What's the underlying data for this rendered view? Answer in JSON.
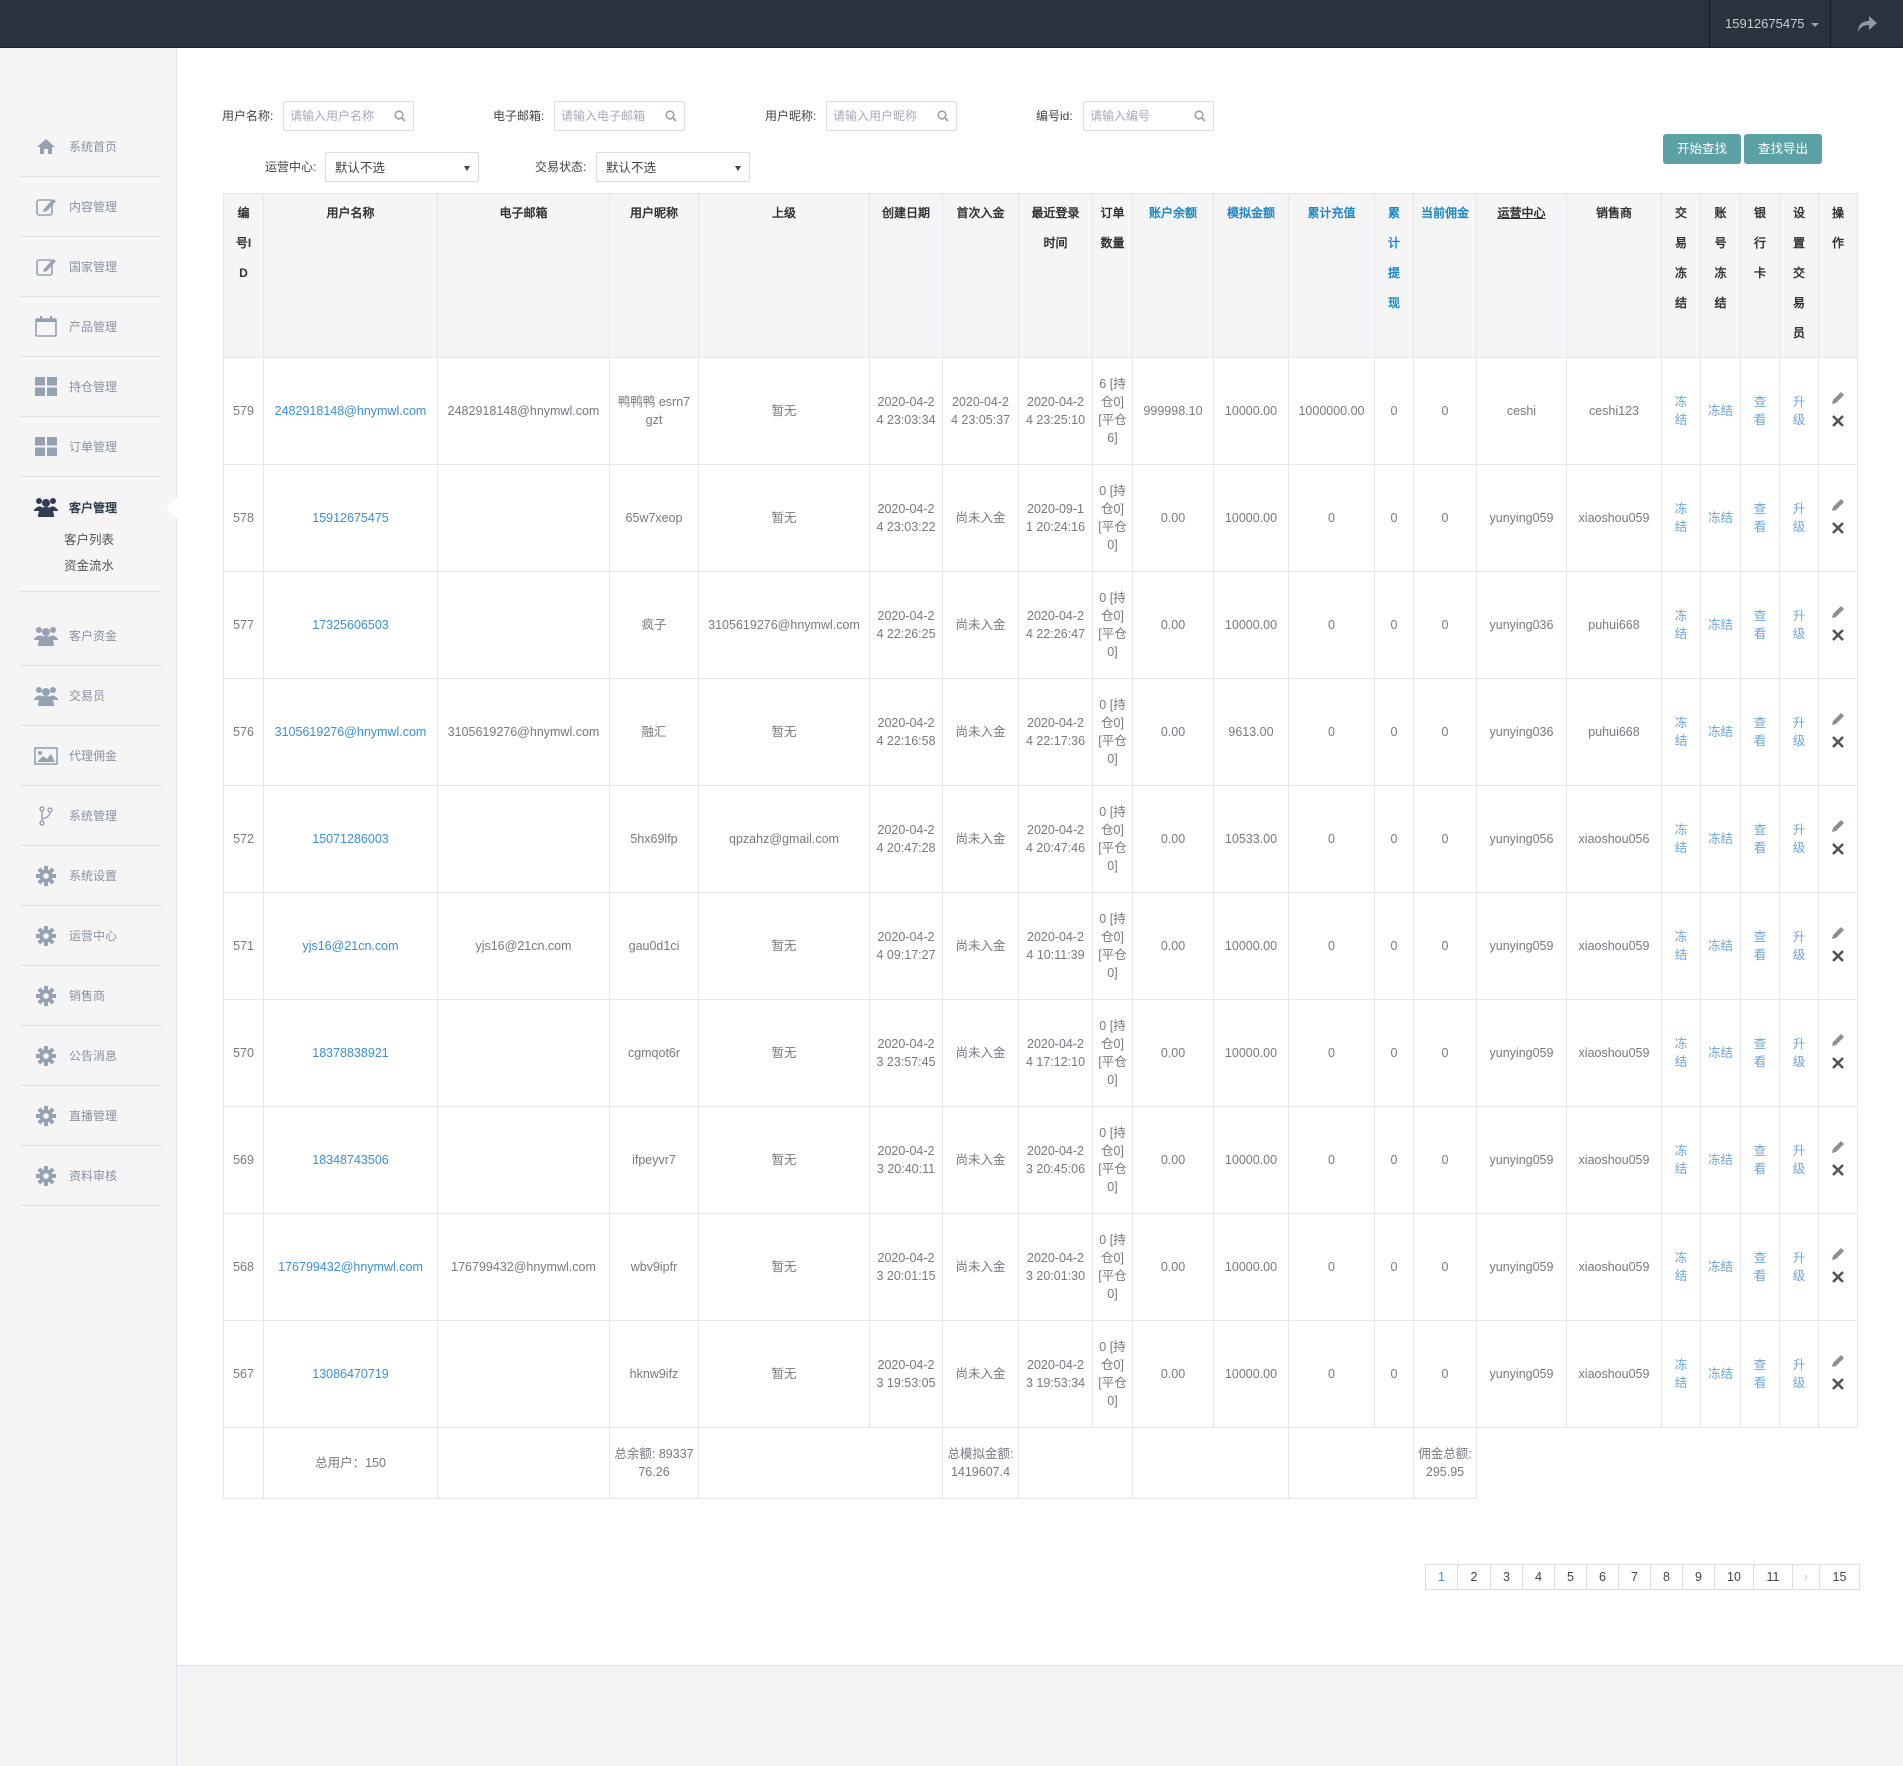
{
  "topbar": {
    "user": "15912675475",
    "share_icon": "share-icon"
  },
  "sidebar": {
    "items": [
      {
        "label": "系统首页",
        "icon": "home-icon"
      },
      {
        "label": "内容管理",
        "icon": "edit-icon"
      },
      {
        "label": "国家管理",
        "icon": "edit-icon"
      },
      {
        "label": "产品管理",
        "icon": "calendar-icon"
      },
      {
        "label": "持仓管理",
        "icon": "grid-icon"
      },
      {
        "label": "订单管理",
        "icon": "grid-icon"
      },
      {
        "label": "客户管理",
        "icon": "users-icon",
        "active": true
      },
      {
        "label": "客户资金",
        "icon": "users-icon"
      },
      {
        "label": "交易员",
        "icon": "users-icon"
      },
      {
        "label": "代理佣金",
        "icon": "image-icon"
      },
      {
        "label": "系统管理",
        "icon": "branch-icon"
      },
      {
        "label": "系统设置",
        "icon": "gear-icon"
      },
      {
        "label": "运营中心",
        "icon": "gear-icon"
      },
      {
        "label": "销售商",
        "icon": "gear-icon"
      },
      {
        "label": "公告消息",
        "icon": "gear-icon"
      },
      {
        "label": "直播管理",
        "icon": "gear-icon"
      },
      {
        "label": "资料审核",
        "icon": "gear-icon"
      }
    ],
    "submenu": [
      "客户列表",
      "资金流水"
    ]
  },
  "filters": {
    "username_label": "用户名称:",
    "username_placeholder": "请输入用户名称",
    "email_label": "电子邮箱:",
    "email_placeholder": "请输入电子邮箱",
    "nickname_label": "用户昵称:",
    "nickname_placeholder": "请输入用户昵称",
    "id_label": "编号id:",
    "id_placeholder": "请输入编号",
    "center_label": "运营中心:",
    "center_value": "默认不选",
    "status_label": "交易状态:",
    "status_value": "默认不选",
    "search_button": "开始查找",
    "export_button": "查找导出"
  },
  "table": {
    "headers": [
      "编号ID",
      "用户名称",
      "电子邮箱",
      "用户昵称",
      "上级",
      "创建日期",
      "首次入金",
      "最近登录时间",
      "订单数量",
      "账户余额",
      "模拟金额",
      "累计充值",
      "累计提现",
      "当前佣金",
      "运营中心",
      "销售商",
      "交易冻结",
      "账号冻结",
      "银行卡",
      "设置交易员",
      "操作"
    ],
    "blue_headers": [
      9,
      10,
      11,
      12,
      13
    ],
    "underline_headers": [
      14
    ],
    "actions": [
      "冻结",
      "冻结",
      "查看",
      "升级"
    ],
    "rows": [
      {
        "id": "579",
        "username": "2482918148@hnymwl.com",
        "email": "2482918148@hnymwl.com",
        "nickname": "鸭鸭鸭 esrn7gzt",
        "parent": "暂无",
        "created": "2020-04-24 23:03:34",
        "first_deposit": "2020-04-24 23:05:37",
        "last_login": "2020-04-24 23:25:10",
        "orders": "6 [持仓0] [平仓6]",
        "balance": "999998.10",
        "sim": "10000.00",
        "recharge": "1000000.00",
        "withdraw": "0",
        "commission": "0",
        "center": "ceshi",
        "seller": "ceshi123"
      },
      {
        "id": "578",
        "username": "15912675475",
        "email": "",
        "nickname": "65w7xeop",
        "parent": "暂无",
        "created": "2020-04-24 23:03:22",
        "first_deposit": "尚未入金",
        "last_login": "2020-09-11 20:24:16",
        "orders": "0 [持仓0] [平仓0]",
        "balance": "0.00",
        "sim": "10000.00",
        "recharge": "0",
        "withdraw": "0",
        "commission": "0",
        "center": "yunying059",
        "seller": "xiaoshou059"
      },
      {
        "id": "577",
        "username": "17325606503",
        "email": "",
        "nickname": "疯子",
        "parent": "3105619276@hnymwl.com",
        "created": "2020-04-24 22:26:25",
        "first_deposit": "尚未入金",
        "last_login": "2020-04-24 22:26:47",
        "orders": "0 [持仓0] [平仓0]",
        "balance": "0.00",
        "sim": "10000.00",
        "recharge": "0",
        "withdraw": "0",
        "commission": "0",
        "center": "yunying036",
        "seller": "puhui668"
      },
      {
        "id": "576",
        "username": "3105619276@hnymwl.com",
        "email": "3105619276@hnymwl.com",
        "nickname": "融汇",
        "parent": "暂无",
        "created": "2020-04-24 22:16:58",
        "first_deposit": "尚未入金",
        "last_login": "2020-04-24 22:17:36",
        "orders": "0 [持仓0] [平仓0]",
        "balance": "0.00",
        "sim": "9613.00",
        "recharge": "0",
        "withdraw": "0",
        "commission": "0",
        "center": "yunying036",
        "seller": "puhui668"
      },
      {
        "id": "572",
        "username": "15071286003",
        "email": "",
        "nickname": "5hx69lfp",
        "parent": "qpzahz@gmail.com",
        "created": "2020-04-24 20:47:28",
        "first_deposit": "尚未入金",
        "last_login": "2020-04-24 20:47:46",
        "orders": "0 [持仓0] [平仓0]",
        "balance": "0.00",
        "sim": "10533.00",
        "recharge": "0",
        "withdraw": "0",
        "commission": "0",
        "center": "yunying056",
        "seller": "xiaoshou056"
      },
      {
        "id": "571",
        "username": "yjs16@21cn.com",
        "email": "yjs16@21cn.com",
        "nickname": "gau0d1ci",
        "parent": "暂无",
        "created": "2020-04-24 09:17:27",
        "first_deposit": "尚未入金",
        "last_login": "2020-04-24 10:11:39",
        "orders": "0 [持仓0] [平仓0]",
        "balance": "0.00",
        "sim": "10000.00",
        "recharge": "0",
        "withdraw": "0",
        "commission": "0",
        "center": "yunying059",
        "seller": "xiaoshou059"
      },
      {
        "id": "570",
        "username": "18378838921",
        "email": "",
        "nickname": "cgmqot6r",
        "parent": "暂无",
        "created": "2020-04-23 23:57:45",
        "first_deposit": "尚未入金",
        "last_login": "2020-04-24 17:12:10",
        "orders": "0 [持仓0] [平仓0]",
        "balance": "0.00",
        "sim": "10000.00",
        "recharge": "0",
        "withdraw": "0",
        "commission": "0",
        "center": "yunying059",
        "seller": "xiaoshou059"
      },
      {
        "id": "569",
        "username": "18348743506",
        "email": "",
        "nickname": "ifpeyvr7",
        "parent": "暂无",
        "created": "2020-04-23 20:40:11",
        "first_deposit": "尚未入金",
        "last_login": "2020-04-23 20:45:06",
        "orders": "0 [持仓0] [平仓0]",
        "balance": "0.00",
        "sim": "10000.00",
        "recharge": "0",
        "withdraw": "0",
        "commission": "0",
        "center": "yunying059",
        "seller": "xiaoshou059"
      },
      {
        "id": "568",
        "username": "176799432@hnymwl.com",
        "email": "176799432@hnymwl.com",
        "nickname": "wbv9ipfr",
        "parent": "暂无",
        "created": "2020-04-23 20:01:15",
        "first_deposit": "尚未入金",
        "last_login": "2020-04-23 20:01:30",
        "orders": "0 [持仓0] [平仓0]",
        "balance": "0.00",
        "sim": "10000.00",
        "recharge": "0",
        "withdraw": "0",
        "commission": "0",
        "center": "yunying059",
        "seller": "xiaoshou059"
      },
      {
        "id": "567",
        "username": "13086470719",
        "email": "",
        "nickname": "hknw9ifz",
        "parent": "暂无",
        "created": "2020-04-23 19:53:05",
        "first_deposit": "尚未入金",
        "last_login": "2020-04-23 19:53:34",
        "orders": "0 [持仓0] [平仓0]",
        "balance": "0.00",
        "sim": "10000.00",
        "recharge": "0",
        "withdraw": "0",
        "commission": "0",
        "center": "yunying059",
        "seller": "xiaoshou059"
      }
    ],
    "footer": {
      "total_users": "总用户：150",
      "total_balance": "总余额: 8933776.26",
      "total_sim": "总模拟金额: 1419607.4",
      "total_commission": "佣金总额: 295.95"
    }
  },
  "pagination": {
    "pages": [
      "1",
      "2",
      "3",
      "4",
      "5",
      "6",
      "7",
      "8",
      "9",
      "10",
      "11",
      "›",
      "15"
    ],
    "current": "1"
  },
  "colors": {
    "topbar": "#2a323d",
    "accent_button": "#5ca1a5",
    "link": "#3b8fd4"
  }
}
